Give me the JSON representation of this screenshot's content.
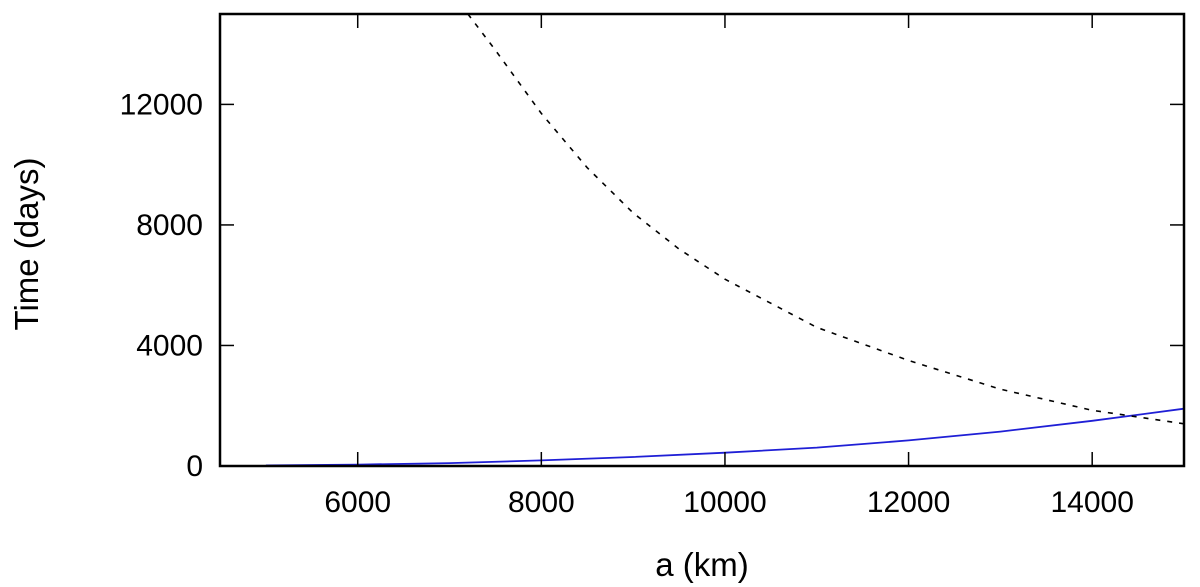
{
  "chart_data": {
    "type": "line",
    "xlabel": "a (km)",
    "ylabel": "Time (days)",
    "xlim": [
      4500,
      15000
    ],
    "ylim": [
      0,
      15000
    ],
    "x_ticks": [
      6000,
      8000,
      10000,
      12000,
      14000
    ],
    "y_ticks": [
      0,
      4000,
      8000,
      12000
    ],
    "grid": false,
    "series": [
      {
        "style": "solid",
        "color": "#1f1fd6",
        "points": [
          [
            5000,
            20
          ],
          [
            6000,
            45
          ],
          [
            7000,
            95
          ],
          [
            8000,
            185
          ],
          [
            9000,
            300
          ],
          [
            10000,
            440
          ],
          [
            11000,
            610
          ],
          [
            12000,
            850
          ],
          [
            13000,
            1140
          ],
          [
            14000,
            1500
          ],
          [
            15000,
            1900
          ]
        ]
      },
      {
        "style": "dashed",
        "color": "#000000",
        "points": [
          [
            7200,
            15000
          ],
          [
            7500,
            13800
          ],
          [
            8000,
            11700
          ],
          [
            8500,
            9900
          ],
          [
            9000,
            8400
          ],
          [
            9500,
            7200
          ],
          [
            10000,
            6200
          ],
          [
            11000,
            4600
          ],
          [
            12000,
            3500
          ],
          [
            13000,
            2550
          ],
          [
            14000,
            1850
          ],
          [
            15000,
            1400
          ]
        ]
      }
    ]
  }
}
